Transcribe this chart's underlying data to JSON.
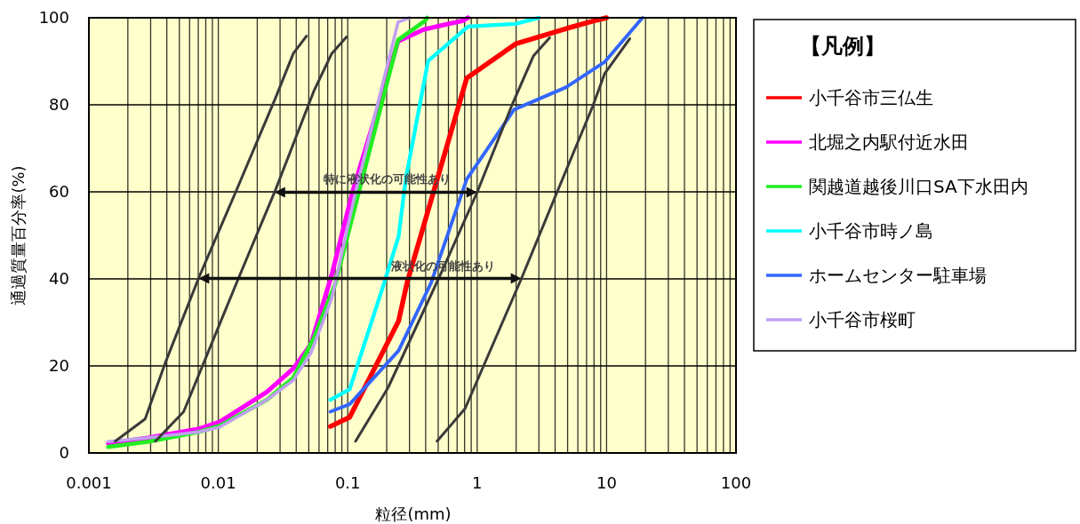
{
  "chart_data": {
    "type": "line",
    "xlabel": "粒径(mm)",
    "ylabel": "通過質量百分率(%)",
    "legend_title": "【凡例】",
    "log": "x",
    "grid": true,
    "legend": "right",
    "xlim": [
      0.001,
      100
    ],
    "ylim": [
      0,
      100
    ],
    "xticks": [
      0.001,
      0.01,
      0.1,
      1,
      10,
      100
    ],
    "yticks": [
      0,
      20,
      40,
      60,
      80,
      100
    ],
    "series": [
      {
        "name": "小千谷市三仏生",
        "color": "#ff0000",
        "x": [
          0.0735,
          0.1035,
          0.247,
          0.289,
          0.83,
          1.98,
          4.98,
          7.8,
          10
        ],
        "values": [
          6.1,
          8.2,
          30.3,
          39.4,
          86.1,
          94,
          97.6,
          99.2,
          100
        ]
      },
      {
        "name": "北堀之内駅付近水田",
        "color": "#ff00ff",
        "x": [
          0.00141,
          0.00293,
          0.007,
          0.0102,
          0.0237,
          0.038,
          0.052,
          0.075,
          0.109,
          0.245,
          0.386,
          0.77,
          0.85
        ],
        "values": [
          2.2,
          3.5,
          5.5,
          7.1,
          14,
          19.4,
          25,
          40.8,
          60,
          94.6,
          97.3,
          99.3,
          100
        ]
      },
      {
        "name": "関越道越後川口SA下水田内",
        "color": "#22ee22",
        "x": [
          0.00141,
          0.0029,
          0.007,
          0.0102,
          0.0237,
          0.038,
          0.055,
          0.08,
          0.122,
          0.245,
          0.396,
          0.41
        ],
        "values": [
          1.4,
          2.6,
          4.8,
          6.2,
          12.2,
          17.3,
          26.5,
          38.8,
          60,
          94.9,
          99.3,
          100
        ]
      },
      {
        "name": "小千谷市時ノ島",
        "color": "#00ffff",
        "x": [
          0.0735,
          0.1035,
          0.19,
          0.247,
          0.282,
          0.418,
          0.851,
          1.98,
          3
        ],
        "values": [
          12.2,
          14.6,
          38.8,
          49.7,
          63.3,
          90.1,
          98,
          98.6,
          100
        ]
      },
      {
        "name": "ホームセンター駐車場",
        "color": "#3366ff",
        "x": [
          0.0735,
          0.1035,
          0.247,
          0.441,
          0.83,
          1.93,
          4.85,
          9.64,
          17.7,
          19
        ],
        "values": [
          9.5,
          11.2,
          23.5,
          39.1,
          62.9,
          78.9,
          84,
          89.8,
          99,
          100
        ]
      },
      {
        "name": "小千谷市桜町",
        "color": "#c0a0f0",
        "x": [
          0.00141,
          0.0029,
          0.007,
          0.0102,
          0.0237,
          0.038,
          0.052,
          0.075,
          0.115,
          0.245,
          0.3
        ],
        "values": [
          2.6,
          3.5,
          4.8,
          5.9,
          12.2,
          16.7,
          23,
          35.4,
          60,
          99,
          100
        ]
      },
      {
        "color": "#3a3a3a",
        "x": [
          0.0016,
          0.00272,
          0.00394,
          0.00703,
          0.0136,
          0.0277,
          0.038,
          0.048
        ],
        "values": [
          2.7,
          7.8,
          21.1,
          40.1,
          59.9,
          81.6,
          91.8,
          95.8
        ]
      },
      {
        "color": "#3a3a3a",
        "x": [
          0.00327,
          0.0054,
          0.0143,
          0.0277,
          0.055,
          0.0753,
          0.098
        ],
        "values": [
          2.7,
          9.5,
          40.1,
          60.5,
          83.3,
          91.8,
          95.6
        ]
      },
      {
        "color": "#3a3a3a",
        "x": [
          0.115,
          0.205,
          0.53,
          1.0,
          1.88,
          2.72,
          3.63
        ],
        "values": [
          2.7,
          15,
          41.5,
          59.9,
          80.3,
          91.2,
          95.4
        ]
      },
      {
        "color": "#3a3a3a",
        "x": [
          0.49,
          0.807,
          2.2,
          4.14,
          7.8,
          9.64,
          15.1
        ],
        "values": [
          2.7,
          10.2,
          40.1,
          59.9,
          79.6,
          87.1,
          95.2
        ]
      }
    ],
    "annotations": [
      {
        "text": "特に液状化の可能性あり",
        "x": 1.0,
        "y": 59.9
      },
      {
        "text": "液状化の可能性あり",
        "x": 2.2,
        "y": 40.1
      }
    ]
  }
}
